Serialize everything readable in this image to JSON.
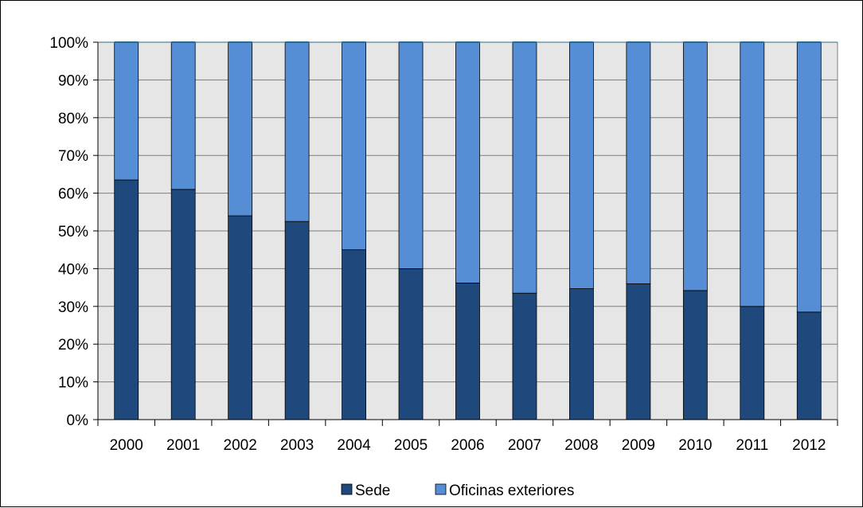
{
  "chart_data": {
    "type": "bar",
    "stacked": true,
    "percent": true,
    "categories": [
      "2000",
      "2001",
      "2002",
      "2003",
      "2004",
      "2005",
      "2006",
      "2007",
      "2008",
      "2009",
      "2010",
      "2011",
      "2012"
    ],
    "series": [
      {
        "name": "Sede",
        "color": "#1f497d",
        "values": [
          63.5,
          61,
          54,
          52.5,
          45,
          40,
          36.2,
          33.5,
          34.7,
          36,
          34.2,
          30,
          28.5
        ]
      },
      {
        "name": "Oficinas exteriores",
        "color": "#558ed5",
        "values": [
          36.5,
          39,
          46,
          47.5,
          55,
          60,
          63.8,
          66.5,
          65.3,
          64,
          65.8,
          70,
          71.5
        ]
      }
    ],
    "y_ticks": [
      "0%",
      "10%",
      "20%",
      "30%",
      "40%",
      "50%",
      "60%",
      "70%",
      "80%",
      "90%",
      "100%"
    ],
    "ylim": [
      0,
      100
    ],
    "grid": true,
    "plot_background": "#e6e6e6",
    "legend_position": "bottom"
  }
}
